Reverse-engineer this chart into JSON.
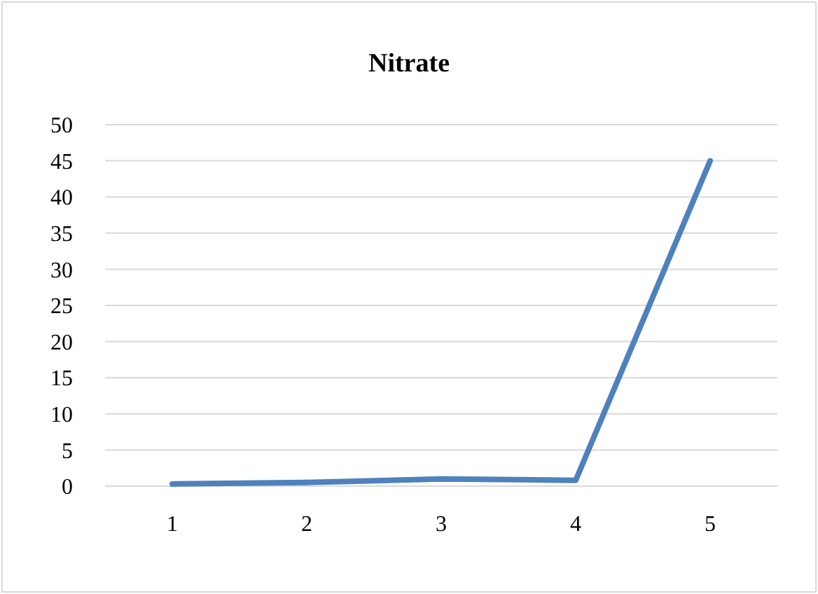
{
  "chart_data": {
    "type": "line",
    "title": "Nitrate",
    "categories": [
      "1",
      "2",
      "3",
      "4",
      "5"
    ],
    "series": [
      {
        "color": "#4f81bd",
        "values": [
          0.3,
          0.5,
          1,
          0.8,
          45
        ]
      }
    ],
    "ylim": [
      0,
      50
    ],
    "yticks": [
      0,
      5,
      10,
      15,
      20,
      25,
      30,
      35,
      40,
      45,
      50
    ],
    "grid": "y",
    "marker": "none",
    "line_style": "solid"
  }
}
